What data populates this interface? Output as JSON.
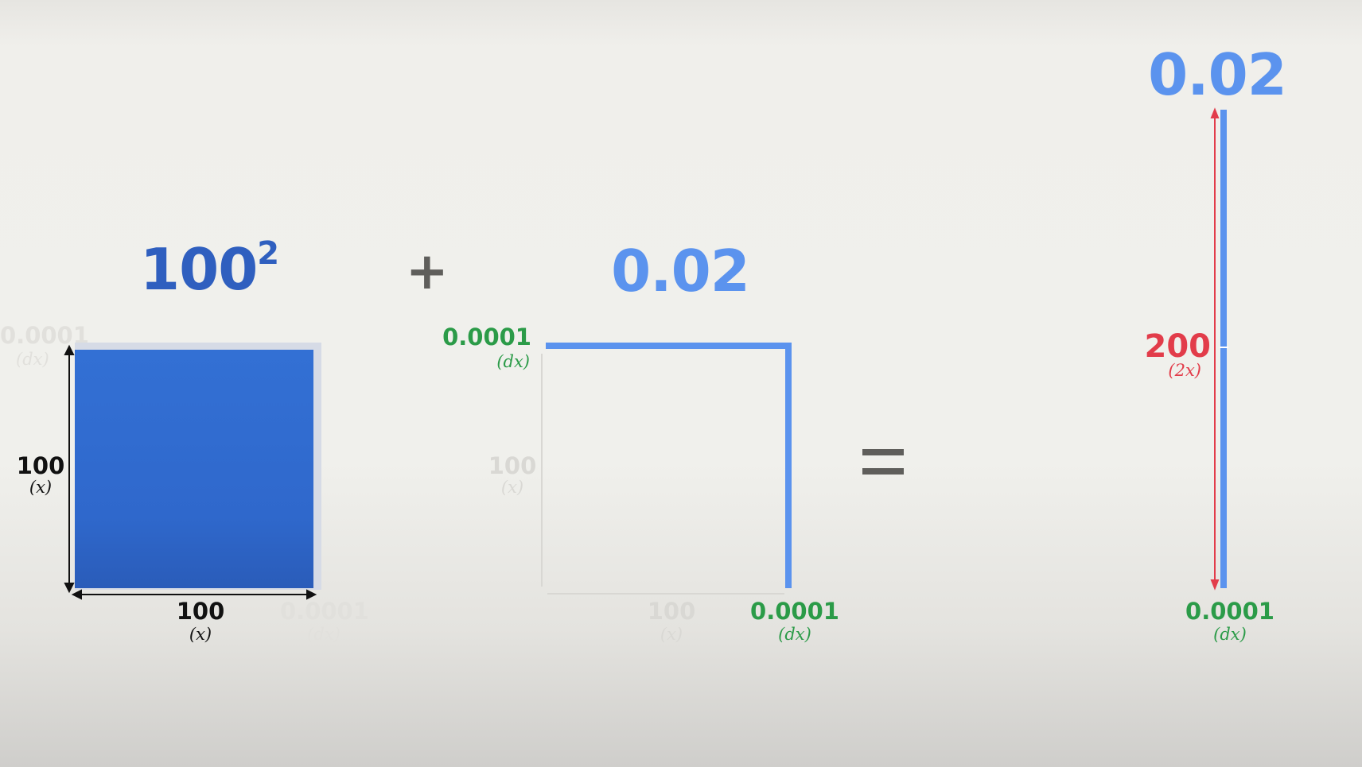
{
  "left": {
    "title_base": "100",
    "title_exp": "2",
    "side_label": "100",
    "side_var": "(x)",
    "bottom_label": "100",
    "bottom_var": "(x)",
    "ghost_label_right": "0.0001",
    "ghost_var_right": "(dx)",
    "ghost_label_left": "0.0001",
    "ghost_var_left": "(dx)"
  },
  "plus": "+",
  "middle": {
    "title": "0.02",
    "top_label": "0.0001",
    "top_var": "(dx)",
    "side_label": "100",
    "side_var": "(x)",
    "bottom_label": "100",
    "bottom_var": "(x)",
    "corner_label": "0.0001",
    "corner_var": "(dx)"
  },
  "equals": "=",
  "right": {
    "title": "0.02",
    "length_label": "200",
    "length_var": "(2x)",
    "width_label": "0.0001",
    "width_var": "(dx)"
  },
  "colors": {
    "square": "#2f68cc",
    "strip": "#5b93ee",
    "dx": "#2b9b48",
    "length": "#e23c4a"
  }
}
